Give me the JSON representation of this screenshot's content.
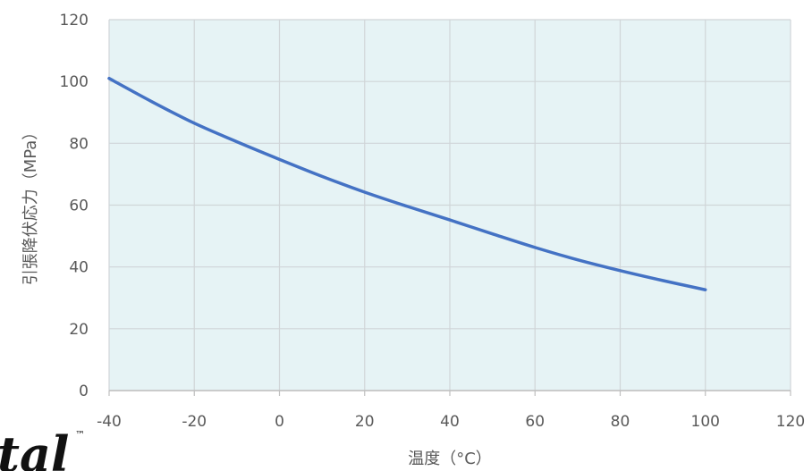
{
  "chart_data": {
    "type": "line",
    "title": "",
    "xlabel": "温度（°C）",
    "ylabel": "引張降伏応力（MPa）",
    "xlim": [
      -40,
      120
    ],
    "ylim": [
      0,
      120
    ],
    "x_ticks": [
      -40,
      -20,
      0,
      20,
      40,
      60,
      80,
      100,
      120
    ],
    "y_ticks": [
      0,
      20,
      40,
      60,
      80,
      100,
      120
    ],
    "grid": true,
    "legend": "none",
    "series": [
      {
        "x": [
          -40,
          -30,
          -20,
          -10,
          0,
          10,
          20,
          30,
          40,
          50,
          60,
          70,
          80,
          90,
          100
        ],
        "y": [
          101,
          93.5,
          86.5,
          80.5,
          74.8,
          69.3,
          64.2,
          59.6,
          55.2,
          50.7,
          46.3,
          42.3,
          38.8,
          35.6,
          32.6
        ]
      }
    ]
  },
  "colors": {
    "plot_background": "#e6f3f5",
    "gridline": "#d0d5d8",
    "line": "#4472c4",
    "axis": "#bfbfbf",
    "text": "#595959"
  },
  "logo": {
    "visible_text": "tal",
    "trademark": "™"
  }
}
